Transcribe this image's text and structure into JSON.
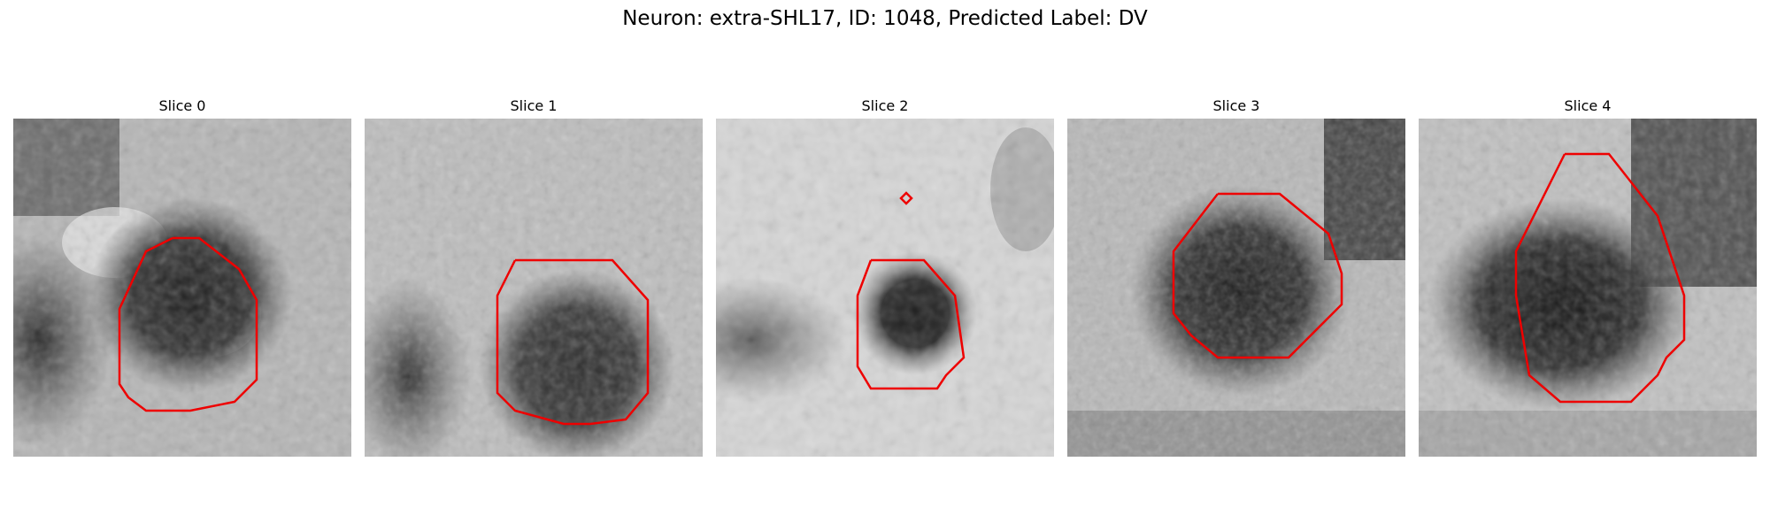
{
  "figure": {
    "title": "Neuron: extra-SHL17, ID: 1048, Predicted Label: DV",
    "colormap": "gray",
    "contour_color": "#ee0000"
  },
  "slices": [
    {
      "title": "Slice 0"
    },
    {
      "title": "Slice 1"
    },
    {
      "title": "Slice 2"
    },
    {
      "title": "Slice 3"
    },
    {
      "title": "Slice 4"
    }
  ]
}
